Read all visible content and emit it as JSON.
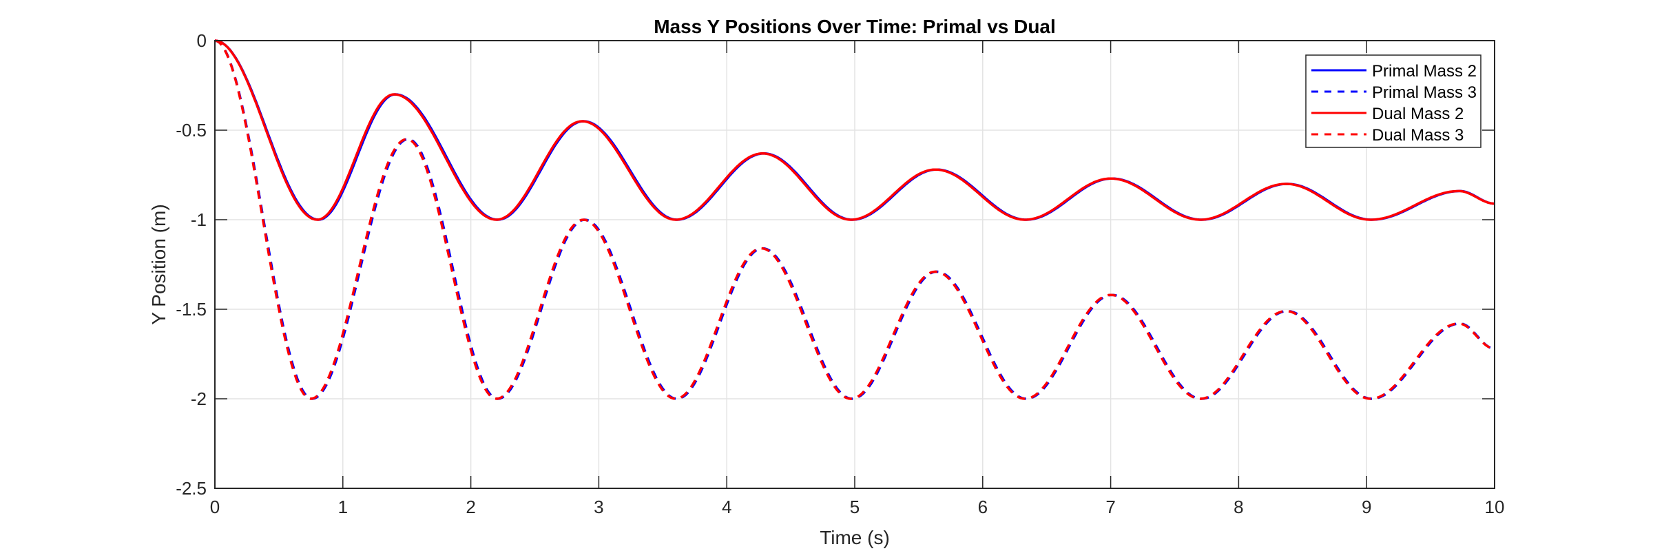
{
  "chart_data": {
    "type": "line",
    "title": "Mass Y Positions Over Time: Primal vs Dual",
    "xlabel": "Time (s)",
    "ylabel": "Y Position (m)",
    "xlim": [
      0,
      10
    ],
    "ylim": [
      -2.5,
      0
    ],
    "xticks": [
      "0",
      "1",
      "2",
      "3",
      "4",
      "5",
      "6",
      "7",
      "8",
      "9",
      "10"
    ],
    "yticks": [
      "0",
      "-0.5",
      "-1",
      "-1.5",
      "-2",
      "-2.5"
    ],
    "grid": true,
    "legend_placement": "top-right",
    "series": [
      {
        "name": "Primal Mass 2",
        "color": "#0000ff",
        "style": "solid",
        "t": [
          0,
          0.81,
          1.41,
          2.21,
          2.88,
          3.61,
          4.29,
          4.98,
          5.64,
          6.34,
          7.01,
          7.71,
          8.38,
          9.04,
          9.73,
          10
        ],
        "y": [
          0,
          -1,
          -0.3,
          -1,
          -0.45,
          -1,
          -0.63,
          -1,
          -0.72,
          -1,
          -0.77,
          -1,
          -0.8,
          -1,
          -0.84,
          -0.91
        ]
      },
      {
        "name": "Primal Mass 3",
        "color": "#0000ff",
        "style": "dashed",
        "t": [
          0,
          0.76,
          1.51,
          2.21,
          2.89,
          3.61,
          4.28,
          4.98,
          5.64,
          6.34,
          7.01,
          7.71,
          8.38,
          9.04,
          9.73,
          10
        ],
        "y": [
          0,
          -2,
          -0.55,
          -2,
          -1,
          -2,
          -1.16,
          -2,
          -1.29,
          -2,
          -1.42,
          -2,
          -1.51,
          -2,
          -1.58,
          -1.72
        ]
      },
      {
        "name": "Dual Mass 2",
        "color": "#ff0000",
        "style": "solid",
        "t": [
          0,
          0.8,
          1.4,
          2.2,
          2.87,
          3.6,
          4.28,
          4.97,
          5.63,
          6.33,
          7.0,
          7.7,
          8.37,
          9.03,
          9.72,
          10
        ],
        "y": [
          0,
          -1,
          -0.3,
          -1,
          -0.45,
          -1,
          -0.63,
          -1,
          -0.72,
          -1,
          -0.77,
          -1,
          -0.8,
          -1,
          -0.84,
          -0.91
        ]
      },
      {
        "name": "Dual Mass 3",
        "color": "#ff0000",
        "style": "dashed",
        "t": [
          0,
          0.75,
          1.5,
          2.2,
          2.88,
          3.6,
          4.27,
          4.97,
          5.63,
          6.33,
          7.0,
          7.7,
          8.37,
          9.03,
          9.72,
          10
        ],
        "y": [
          0,
          -2,
          -0.55,
          -2,
          -1,
          -2,
          -1.16,
          -2,
          -1.29,
          -2,
          -1.42,
          -2,
          -1.51,
          -2,
          -1.58,
          -1.72
        ]
      }
    ]
  }
}
